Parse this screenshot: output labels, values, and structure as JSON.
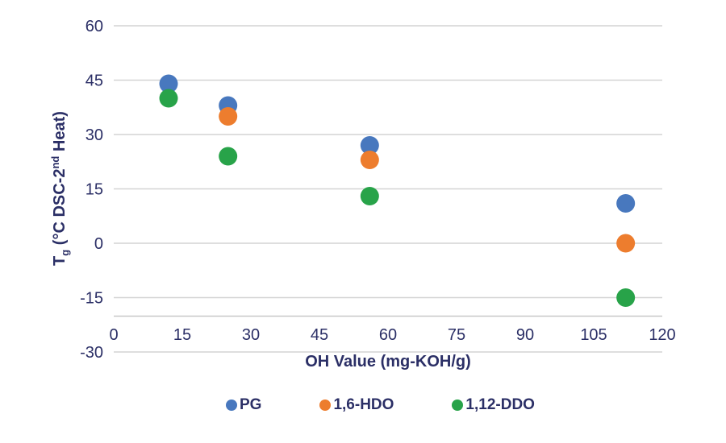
{
  "chart_data": {
    "type": "scatter",
    "title": "",
    "xlabel": "OH Value (mg-KOH/g)",
    "ylabel": "Tg (°C DSC-2nd Heat)",
    "ylabel_parts": [
      {
        "text": "T",
        "style": "normal"
      },
      {
        "text": "g",
        "style": "sub"
      },
      {
        "text": " (°C DSC-2",
        "style": "normal"
      },
      {
        "text": "nd",
        "style": "sup"
      },
      {
        "text": " Heat)",
        "style": "normal"
      }
    ],
    "xlim": [
      0,
      120
    ],
    "ylim": [
      -30,
      60
    ],
    "x_ticks": [
      0,
      15,
      30,
      45,
      60,
      75,
      90,
      105,
      120
    ],
    "y_ticks": [
      60,
      45,
      30,
      15,
      0,
      -15,
      -30
    ],
    "grid": "horizontal",
    "legend_position": "bottom",
    "series": [
      {
        "name": "PG",
        "color": "#4878BE",
        "points": [
          [
            12,
            44
          ],
          [
            25,
            38
          ],
          [
            56,
            27
          ],
          [
            112,
            11
          ]
        ]
      },
      {
        "name": "1,6-HDO",
        "color": "#ED7D2E",
        "points": [
          [
            25,
            35
          ],
          [
            56,
            23
          ],
          [
            112,
            0
          ]
        ]
      },
      {
        "name": "1,12-DDO",
        "color": "#28A349",
        "points": [
          [
            12,
            40
          ],
          [
            25,
            24
          ],
          [
            56,
            13
          ],
          [
            112,
            -15
          ]
        ]
      }
    ],
    "colors": {
      "text": "#2B2F66",
      "gridline": "#D4D4D4",
      "axis_line": "#C8C8C8",
      "background": "#FFFFFF"
    }
  }
}
